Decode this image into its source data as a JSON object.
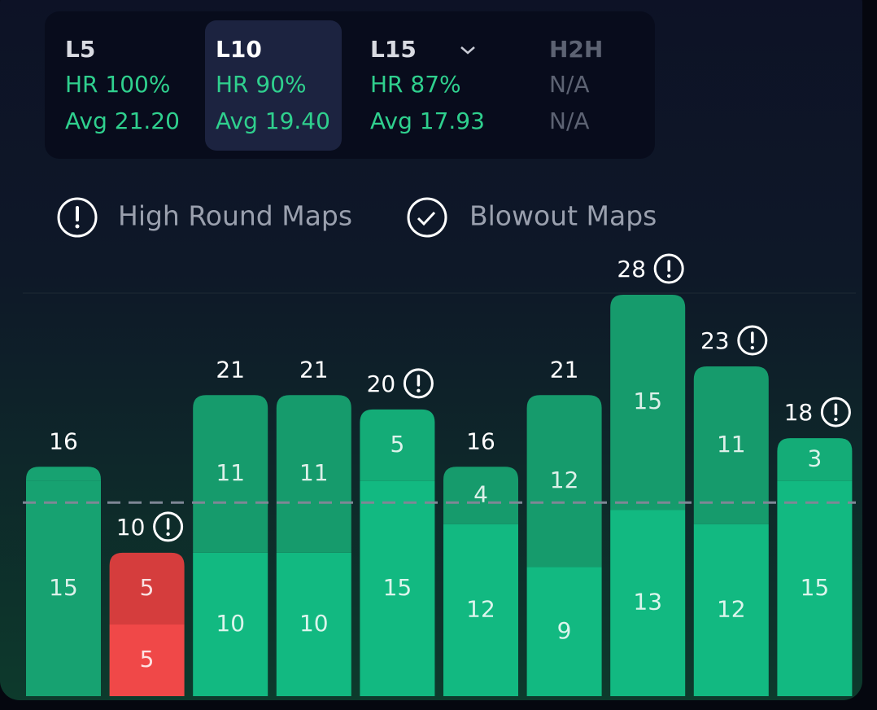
{
  "tabs": [
    {
      "label": "L5",
      "hr": "HR 100%",
      "avg": "Avg 21.20"
    },
    {
      "label": "L10",
      "hr": "HR 90%",
      "avg": "Avg 19.40"
    },
    {
      "label": "L15",
      "hr": "HR 87%",
      "avg": "Avg 17.93"
    },
    {
      "label": "H2H",
      "hr": "N/A",
      "avg": "N/A"
    }
  ],
  "legend": [
    "High Round Maps",
    "Blowout Maps"
  ],
  "chart_data": {
    "type": "bar",
    "stacked": true,
    "ylim": [
      0,
      28
    ],
    "threshold": 13.5,
    "totals": [
      16,
      10,
      21,
      21,
      20,
      16,
      21,
      28,
      23,
      18
    ],
    "high_round": [
      false,
      true,
      false,
      false,
      true,
      false,
      false,
      true,
      true,
      true
    ],
    "series": [
      {
        "values": [
          15,
          5,
          10,
          10,
          15,
          12,
          9,
          13,
          12,
          15
        ],
        "colors": [
          "#17a271",
          "#f04848",
          "#12b981",
          "#12b981",
          "#12b981",
          "#12b981",
          "#12b981",
          "#12b981",
          "#12b981",
          "#12b981"
        ]
      },
      {
        "values": [
          1,
          5,
          11,
          11,
          5,
          4,
          12,
          15,
          11,
          3
        ],
        "value_labels": [
          null,
          "5",
          "11",
          "11",
          "5",
          "4",
          "12",
          "15",
          "11",
          "3"
        ],
        "colors": [
          "#17a271",
          "#d53d3d",
          "#169b6c",
          "#169b6c",
          "#14ac77",
          "#169b6c",
          "#169b6c",
          "#169b6c",
          "#169b6c",
          "#14ac77"
        ]
      }
    ]
  }
}
